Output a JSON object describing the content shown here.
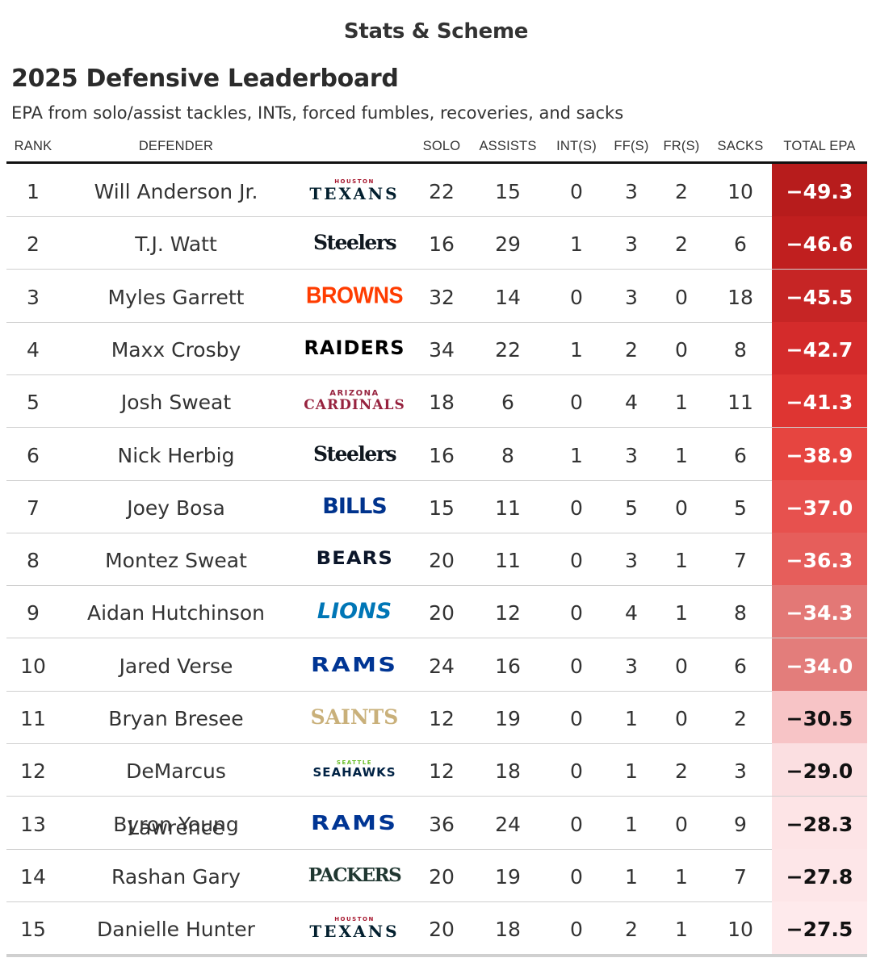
{
  "brand": "Stats & Scheme",
  "title": "2025 Defensive Leaderboard",
  "subtitle": "EPA from solo/assist tackles, INTs, forced fumbles, recoveries, and sacks",
  "columns": {
    "rank": "RANK",
    "defender": "DEFENDER",
    "solo": "SOLO",
    "assists": "ASSISTS",
    "ints": "INT(S)",
    "ffs": "FF(S)",
    "frs": "FR(S)",
    "sacks": "SACKS",
    "total_epa": "TOTAL EPA"
  },
  "rows": [
    {
      "rank": "1",
      "defender": "Will Anderson Jr.",
      "logo": "TEXANS",
      "logo_top": "HOUSTON",
      "logo_color": "#03202f",
      "logo_top_color": "#a71930",
      "solo": "22",
      "assists": "15",
      "ints": "0",
      "ffs": "3",
      "frs": "2",
      "sacks": "10",
      "total_epa": "−49.3",
      "epa_bg": "#b71c1c",
      "epa_color": "#ffffff"
    },
    {
      "rank": "2",
      "defender": "T.J. Watt",
      "logo": "Steelers",
      "logo_top": "",
      "logo_color": "#101820",
      "logo_top_color": "",
      "solo": "16",
      "assists": "29",
      "ints": "1",
      "ffs": "3",
      "frs": "2",
      "sacks": "6",
      "total_epa": "−46.6",
      "epa_bg": "#c01f1f",
      "epa_color": "#ffffff"
    },
    {
      "rank": "3",
      "defender": "Myles Garrett",
      "logo": "BROWNS",
      "logo_top": "",
      "logo_color": "#ff3c00",
      "logo_top_color": "",
      "solo": "32",
      "assists": "14",
      "ints": "0",
      "ffs": "3",
      "frs": "0",
      "sacks": "18",
      "total_epa": "−45.5",
      "epa_bg": "#c62525",
      "epa_color": "#ffffff"
    },
    {
      "rank": "4",
      "defender": "Maxx Crosby",
      "logo": "RAIDERS",
      "logo_top": "",
      "logo_color": "#000000",
      "logo_top_color": "",
      "solo": "34",
      "assists": "22",
      "ints": "1",
      "ffs": "2",
      "frs": "0",
      "sacks": "8",
      "total_epa": "−42.7",
      "epa_bg": "#d42b2b",
      "epa_color": "#ffffff"
    },
    {
      "rank": "5",
      "defender": "Josh Sweat",
      "logo": "CARDINALS",
      "logo_top": "ARIZONA",
      "logo_color": "#97233f",
      "logo_top_color": "#97233f",
      "solo": "18",
      "assists": "6",
      "ints": "0",
      "ffs": "4",
      "frs": "1",
      "sacks": "11",
      "total_epa": "−41.3",
      "epa_bg": "#de3532",
      "epa_color": "#ffffff"
    },
    {
      "rank": "6",
      "defender": "Nick Herbig",
      "logo": "Steelers",
      "logo_top": "",
      "logo_color": "#101820",
      "logo_top_color": "",
      "solo": "16",
      "assists": "8",
      "ints": "1",
      "ffs": "3",
      "frs": "1",
      "sacks": "6",
      "total_epa": "−38.9",
      "epa_bg": "#e64540",
      "epa_color": "#ffffff"
    },
    {
      "rank": "7",
      "defender": "Joey Bosa",
      "logo": "BILLS",
      "logo_top": "",
      "logo_color": "#00338d",
      "logo_top_color": "",
      "solo": "15",
      "assists": "11",
      "ints": "0",
      "ffs": "5",
      "frs": "0",
      "sacks": "5",
      "total_epa": "−37.0",
      "epa_bg": "#e7514e",
      "epa_color": "#ffffff"
    },
    {
      "rank": "8",
      "defender": "Montez Sweat",
      "logo": "BEARS",
      "logo_top": "",
      "logo_color": "#0b162a",
      "logo_top_color": "",
      "solo": "20",
      "assists": "11",
      "ints": "0",
      "ffs": "3",
      "frs": "1",
      "sacks": "7",
      "total_epa": "−36.3",
      "epa_bg": "#e65e5b",
      "epa_color": "#ffffff"
    },
    {
      "rank": "9",
      "defender": "Aidan Hutchinson",
      "logo": "LIONS",
      "logo_top": "",
      "logo_color": "#0076b6",
      "logo_top_color": "",
      "solo": "20",
      "assists": "12",
      "ints": "0",
      "ffs": "4",
      "frs": "1",
      "sacks": "8",
      "total_epa": "−34.3",
      "epa_bg": "#e37876",
      "epa_color": "#ffffff"
    },
    {
      "rank": "10",
      "defender": "Jared Verse",
      "logo": "RAMS",
      "logo_top": "",
      "logo_color": "#003594",
      "logo_top_color": "",
      "solo": "24",
      "assists": "16",
      "ints": "0",
      "ffs": "3",
      "frs": "0",
      "sacks": "6",
      "total_epa": "−34.0",
      "epa_bg": "#e37d7b",
      "epa_color": "#ffffff"
    },
    {
      "rank": "11",
      "defender": "Bryan Bresee",
      "logo": "SAINTS",
      "logo_top": "",
      "logo_color": "#c9b07a",
      "logo_top_color": "",
      "solo": "12",
      "assists": "19",
      "ints": "0",
      "ffs": "1",
      "frs": "0",
      "sacks": "2",
      "total_epa": "−30.5",
      "epa_bg": "#f7c4c6",
      "epa_color": "#111111"
    },
    {
      "rank": "12",
      "defender": "DeMarcus Lawrence",
      "logo": "SEAHAWKS",
      "logo_top": "SEATTLE",
      "logo_color": "#002244",
      "logo_top_color": "#69be28",
      "solo": "12",
      "assists": "18",
      "ints": "0",
      "ffs": "1",
      "frs": "2",
      "sacks": "3",
      "total_epa": "−29.0",
      "epa_bg": "#fbdfe1",
      "epa_color": "#111111"
    },
    {
      "rank": "13",
      "defender": "Byron Young",
      "logo": "RAMS",
      "logo_top": "",
      "logo_color": "#003594",
      "logo_top_color": "",
      "solo": "36",
      "assists": "24",
      "ints": "0",
      "ffs": "1",
      "frs": "0",
      "sacks": "9",
      "total_epa": "−28.3",
      "epa_bg": "#fde4e6",
      "epa_color": "#111111"
    },
    {
      "rank": "14",
      "defender": "Rashan Gary",
      "logo": "PACKERS",
      "logo_top": "",
      "logo_color": "#203731",
      "logo_top_color": "",
      "solo": "20",
      "assists": "19",
      "ints": "0",
      "ffs": "1",
      "frs": "1",
      "sacks": "7",
      "total_epa": "−27.8",
      "epa_bg": "#fde6e8",
      "epa_color": "#111111"
    },
    {
      "rank": "15",
      "defender": "Danielle Hunter",
      "logo": "TEXANS",
      "logo_top": "HOUSTON",
      "logo_color": "#03202f",
      "logo_top_color": "#a71930",
      "solo": "20",
      "assists": "18",
      "ints": "0",
      "ffs": "2",
      "frs": "1",
      "sacks": "10",
      "total_epa": "−27.5",
      "epa_bg": "#feeaec",
      "epa_color": "#111111"
    }
  ]
}
